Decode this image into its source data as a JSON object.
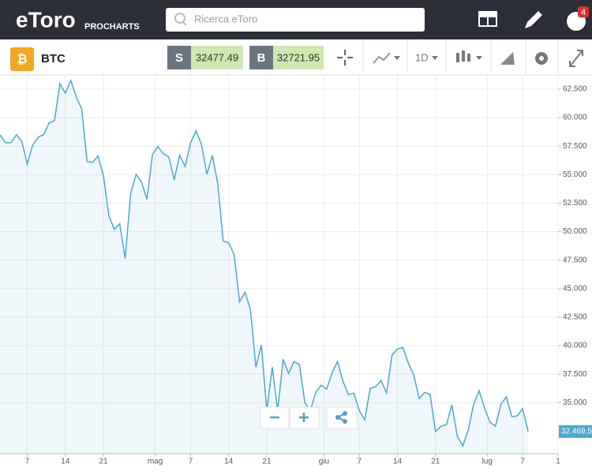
{
  "header": {
    "logo": "eToro",
    "subtitle": "PROCHARTS",
    "search_placeholder": "Ricerca eToro",
    "badge": "4"
  },
  "toolbar": {
    "instrument": "BTC",
    "sell_label": "S",
    "sell_price": "32477.49",
    "buy_label": "B",
    "buy_price": "32721.95",
    "interval": "1D"
  },
  "chart_data": {
    "type": "line",
    "series": [
      {
        "name": "BTC",
        "color": "#4aa8d0",
        "values": [
          58500,
          57800,
          57800,
          58500,
          57940,
          55940,
          57600,
          58290,
          58500,
          59530,
          59740,
          62980,
          62150,
          63260,
          61810,
          60770,
          56150,
          56080,
          56630,
          54900,
          51380,
          50210,
          50690,
          47650,
          53320,
          55040,
          54350,
          52830,
          56770,
          57460,
          56840,
          56560,
          54560,
          56700,
          55730,
          57800,
          58840,
          57670,
          55040,
          56700,
          54210,
          49170,
          49030,
          47990,
          43850,
          44680,
          43160,
          38120,
          40060,
          34320,
          38120,
          34320,
          38810,
          37570,
          38610,
          38330,
          35010,
          34320,
          35910,
          36530,
          36190,
          37640,
          38610,
          36880,
          35700,
          35840,
          34320,
          33490,
          36260,
          36400,
          36950,
          35840,
          39160,
          39710,
          39850,
          38470,
          37430,
          35360,
          35910,
          35700,
          32460,
          32940,
          33080,
          34810,
          32040,
          31220,
          32600,
          34880,
          36050,
          34530,
          33290,
          32940,
          34880,
          35500,
          33770,
          33840,
          34460,
          32470
        ]
      }
    ],
    "xlim": [
      0,
      102.5
    ],
    "xticks": [
      {
        "value": 5,
        "label": "7"
      },
      {
        "value": 12,
        "label": "14"
      },
      {
        "value": 19,
        "label": "21"
      },
      {
        "value": 28.5,
        "label": "mag"
      },
      {
        "value": 35,
        "label": "7"
      },
      {
        "value": 42,
        "label": "14"
      },
      {
        "value": 49,
        "label": "21"
      },
      {
        "value": 59.5,
        "label": "giu"
      },
      {
        "value": 66,
        "label": "7"
      },
      {
        "value": 73,
        "label": "14"
      },
      {
        "value": 80,
        "label": "21"
      },
      {
        "value": 89.5,
        "label": "lug"
      },
      {
        "value": 96,
        "label": "7"
      },
      {
        "value": 102.5,
        "label": "1"
      }
    ],
    "ylim": [
      30525,
      63675
    ],
    "yticks": [
      {
        "value": 35000,
        "label": "35.000"
      },
      {
        "value": 37500,
        "label": "37.500"
      },
      {
        "value": 40000,
        "label": "40.000"
      },
      {
        "value": 42500,
        "label": "42.500"
      },
      {
        "value": 45000,
        "label": "45.000"
      },
      {
        "value": 47500,
        "label": "47.500"
      },
      {
        "value": 50000,
        "label": "50.000"
      },
      {
        "value": 52500,
        "label": "52.500"
      },
      {
        "value": 55000,
        "label": "55.000"
      },
      {
        "value": 57500,
        "label": "57.500"
      },
      {
        "value": 60000,
        "label": "60.000"
      },
      {
        "value": 62500,
        "label": "62.500"
      }
    ],
    "last_label": "32.469,5",
    "grid": true
  }
}
